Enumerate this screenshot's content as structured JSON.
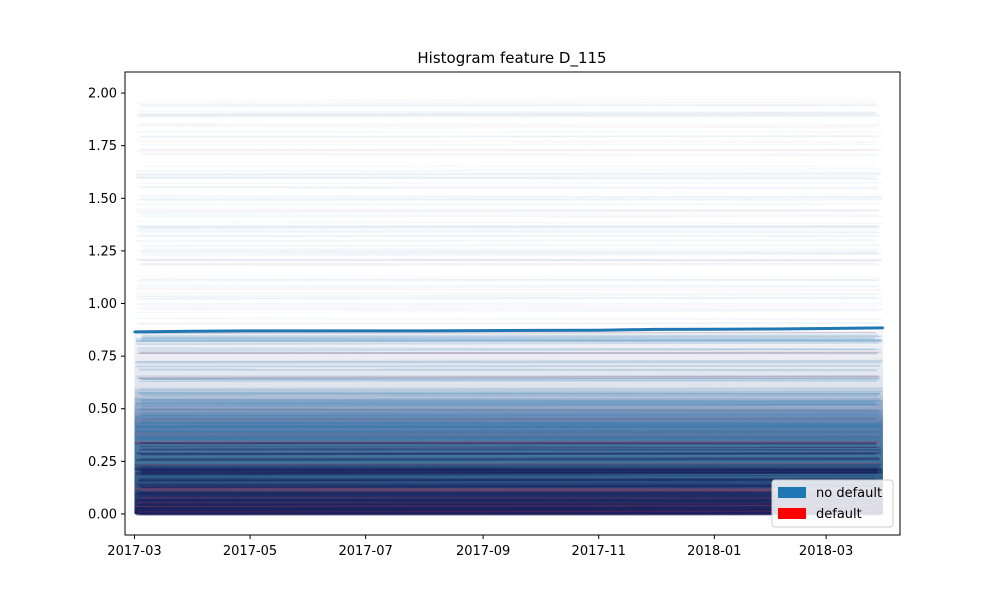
{
  "chart_data": {
    "type": "line",
    "title": "Histogram feature D_115",
    "xlabel": "",
    "ylabel": "",
    "x_ticks": [
      "2017-03",
      "2017-05",
      "2017-07",
      "2017-09",
      "2017-11",
      "2018-01",
      "2018-03"
    ],
    "x_range": [
      "2017-02-24",
      "2018-04-09"
    ],
    "y_ticks": [
      "0.00",
      "0.25",
      "0.50",
      "0.75",
      "1.00",
      "1.25",
      "1.50",
      "1.75",
      "2.00"
    ],
    "ylim": [
      -0.1,
      2.1
    ],
    "grid": false,
    "legend": {
      "position": "lower-right",
      "entries": [
        {
          "label": "no default",
          "color": "#1f77b4"
        },
        {
          "label": "default",
          "color": "#ff0000"
        }
      ]
    },
    "series": [
      {
        "label": "no default",
        "color": "#1f77b4",
        "x": [
          "2017-03-01",
          "2017-04-01",
          "2017-05-01",
          "2017-06-01",
          "2017-07-01",
          "2017-08-01",
          "2017-09-01",
          "2017-10-01",
          "2017-11-01",
          "2017-12-01",
          "2018-01-01",
          "2018-02-01",
          "2018-03-01",
          "2018-03-31"
        ],
        "values": [
          0.865,
          0.868,
          0.87,
          0.87,
          0.87,
          0.87,
          0.871,
          0.872,
          0.873,
          0.877,
          0.878,
          0.879,
          0.881,
          0.884
        ]
      }
    ]
  }
}
